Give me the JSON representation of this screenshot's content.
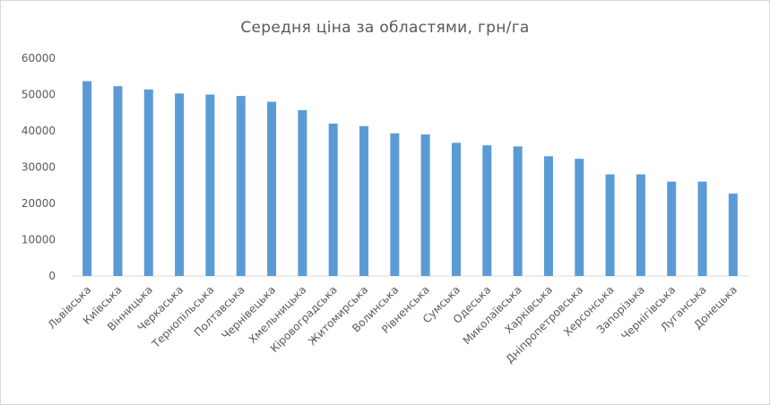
{
  "chart_data": {
    "type": "bar",
    "title": "Середня ціна за областями, грн/га",
    "xlabel": "",
    "ylabel": "",
    "categories": [
      "Львівська",
      "Київська",
      "Вінницька",
      "Черкаська",
      "Тернопільська",
      "Полтавська",
      "Чернівецька",
      "Хмельницька",
      "Кіровоградська",
      "Житомирська",
      "Волинська",
      "Рівненська",
      "Сумська",
      "Одеська",
      "Миколаївська",
      "Харківська",
      "Дніпропетровська",
      "Херсонська",
      "Запорізька",
      "Чернігівська",
      "Луганська",
      "Донецька"
    ],
    "values": [
      53700,
      52300,
      51400,
      50300,
      50000,
      49600,
      48000,
      45700,
      42000,
      41300,
      39300,
      39000,
      36700,
      36000,
      35700,
      33000,
      32300,
      28000,
      28000,
      26000,
      26000,
      22700
    ],
    "yticks": [
      0,
      10000,
      20000,
      30000,
      40000,
      50000,
      60000
    ],
    "ylim": [
      0,
      60000
    ],
    "grid": false,
    "bar_color": "#5b9bd5"
  }
}
